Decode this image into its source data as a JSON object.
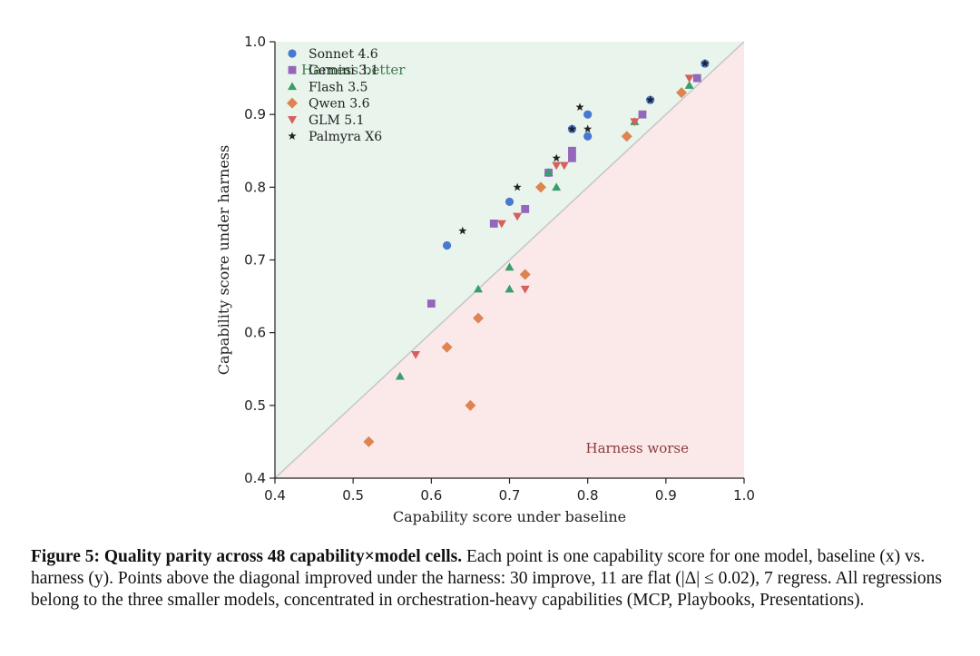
{
  "chart_data": {
    "type": "scatter",
    "xlabel": "Capability score under baseline",
    "ylabel": "Capability score under harness",
    "xlim": [
      0.4,
      1.0
    ],
    "ylim": [
      0.4,
      1.0
    ],
    "xticks": [
      "0.4",
      "0.5",
      "0.6",
      "0.7",
      "0.8",
      "0.9",
      "1.0"
    ],
    "yticks": [
      "0.4",
      "0.5",
      "0.6",
      "0.7",
      "0.8",
      "0.9",
      "1.0"
    ],
    "grid": false,
    "diagonal": "y = x",
    "legend_position": "top-left",
    "region_labels": {
      "above": "Harness better",
      "below": "Harness worse"
    },
    "region_colors": {
      "above": "#e9f4ec",
      "below": "#fbe9ea",
      "above_text": "#3f7a4c",
      "below_text": "#8b3a3a"
    },
    "series": [
      {
        "name": "Sonnet 4.6",
        "marker": "circle",
        "color": "#4878d0",
        "points": [
          [
            0.62,
            0.72
          ],
          [
            0.7,
            0.78
          ],
          [
            0.75,
            0.82
          ],
          [
            0.78,
            0.88
          ],
          [
            0.8,
            0.9
          ],
          [
            0.8,
            0.87
          ],
          [
            0.88,
            0.92
          ],
          [
            0.95,
            0.97
          ]
        ]
      },
      {
        "name": "Gemini 3.1",
        "marker": "square",
        "color": "#9467bd",
        "points": [
          [
            0.6,
            0.64
          ],
          [
            0.68,
            0.75
          ],
          [
            0.72,
            0.77
          ],
          [
            0.75,
            0.82
          ],
          [
            0.78,
            0.85
          ],
          [
            0.78,
            0.84
          ],
          [
            0.87,
            0.9
          ],
          [
            0.94,
            0.95
          ]
        ]
      },
      {
        "name": "Flash 3.5",
        "marker": "triangle-up",
        "color": "#3a9e6c",
        "points": [
          [
            0.56,
            0.54
          ],
          [
            0.66,
            0.66
          ],
          [
            0.7,
            0.69
          ],
          [
            0.7,
            0.66
          ],
          [
            0.75,
            0.82
          ],
          [
            0.76,
            0.8
          ],
          [
            0.86,
            0.89
          ],
          [
            0.93,
            0.94
          ]
        ]
      },
      {
        "name": "Qwen 3.6",
        "marker": "diamond",
        "color": "#dd8452",
        "points": [
          [
            0.52,
            0.45
          ],
          [
            0.62,
            0.58
          ],
          [
            0.65,
            0.5
          ],
          [
            0.66,
            0.62
          ],
          [
            0.72,
            0.68
          ],
          [
            0.74,
            0.8
          ],
          [
            0.85,
            0.87
          ],
          [
            0.92,
            0.93
          ]
        ]
      },
      {
        "name": "GLM 5.1",
        "marker": "triangle-down",
        "color": "#d65f5f",
        "points": [
          [
            0.58,
            0.57
          ],
          [
            0.69,
            0.75
          ],
          [
            0.71,
            0.76
          ],
          [
            0.72,
            0.66
          ],
          [
            0.76,
            0.83
          ],
          [
            0.77,
            0.83
          ],
          [
            0.86,
            0.89
          ],
          [
            0.93,
            0.95
          ]
        ]
      },
      {
        "name": "Palmyra X6",
        "marker": "star",
        "color": "#222222",
        "points": [
          [
            0.64,
            0.74
          ],
          [
            0.71,
            0.8
          ],
          [
            0.76,
            0.84
          ],
          [
            0.78,
            0.88
          ],
          [
            0.79,
            0.91
          ],
          [
            0.8,
            0.88
          ],
          [
            0.88,
            0.92
          ],
          [
            0.95,
            0.97
          ]
        ]
      }
    ]
  },
  "caption": {
    "lead": "Figure 5: Quality parity across 48 capability×model cells.",
    "body": " Each point is one capability score for one model, baseline (x) vs. harness (y). Points above the diagonal improved under the harness: 30 improve, 11 are flat (|Δ| ≤ 0.02), 7 regress. All regressions belong to the three smaller models, concentrated in orchestration-heavy capabilities (MCP, Playbooks, Presentations)."
  }
}
